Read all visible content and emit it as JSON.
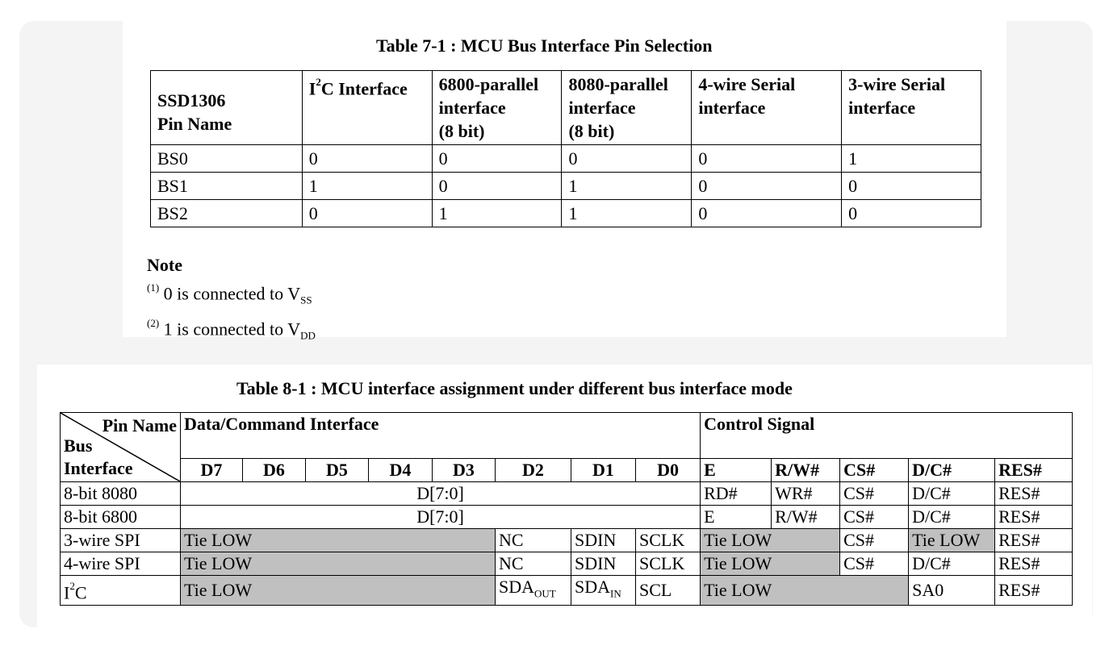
{
  "table1": {
    "title": "Table 7-1 : MCU Bus Interface Pin Selection",
    "header_pin_line1": "SSD1306",
    "header_pin_line2": "Pin Name",
    "col_i2c_base": "C Interface",
    "col_i2c_prefix": "I",
    "col_i2c_sup": "2",
    "col_6800_l1": "6800-parallel",
    "col_6800_l2": "interface",
    "col_6800_l3": "(8 bit)",
    "col_8080_l1": "8080-parallel",
    "col_8080_l2": "interface",
    "col_8080_l3": "(8 bit)",
    "col_4wire_l1": "4-wire Serial",
    "col_4wire_l2": "interface",
    "col_3wire_l1": "3-wire Serial",
    "col_3wire_l2": "interface",
    "rows": [
      {
        "pin": "BS0",
        "i2c": "0",
        "p6800": "0",
        "p8080": "0",
        "w4": "0",
        "w3": "1"
      },
      {
        "pin": "BS1",
        "i2c": "1",
        "p6800": "0",
        "p8080": "1",
        "w4": "0",
        "w3": "0"
      },
      {
        "pin": "BS2",
        "i2c": "0",
        "p6800": "1",
        "p8080": "1",
        "w4": "0",
        "w3": "0"
      }
    ]
  },
  "note": {
    "title": "Note",
    "n1_mark": "(1)",
    "n1_text": " 0 is connected to V",
    "n1_sub": "SS",
    "n2_mark": "(2)",
    "n2_text": " 1 is connected to V",
    "n2_sub": "DD"
  },
  "table2": {
    "title": "Table 8-1 : MCU interface assignment under different bus interface mode",
    "pin_name": "Pin Name",
    "bus": "Bus",
    "interface": "Interface",
    "data_cmd": "Data/Command Interface",
    "control": "Control Signal",
    "cols": [
      "D7",
      "D6",
      "D5",
      "D4",
      "D3",
      "D2",
      "D1",
      "D0",
      "E",
      "R/W#",
      "CS#",
      "D/C#",
      "RES#"
    ],
    "r8080": {
      "name": "8-bit 8080",
      "data": "D[7:0]",
      "e": "RD#",
      "rw": "WR#",
      "cs": "CS#",
      "dc": "D/C#",
      "res": "RES#"
    },
    "r6800": {
      "name": "8-bit 6800",
      "data": "D[7:0]",
      "e": "E",
      "rw": "R/W#",
      "cs": "CS#",
      "dc": "D/C#",
      "res": "RES#"
    },
    "r3spi": {
      "name": "3-wire SPI",
      "tie": "Tie LOW",
      "d2": "NC",
      "d1": "SDIN",
      "d0": "SCLK",
      "ctrl_tie": "Tie LOW",
      "cs": "CS#",
      "dc": "Tie LOW",
      "res": "RES#"
    },
    "r4spi": {
      "name": "4-wire SPI",
      "tie": "Tie LOW",
      "d2": "NC",
      "d1": "SDIN",
      "d0": "SCLK",
      "ctrl_tie": "Tie LOW",
      "cs": "CS#",
      "dc": "D/C#",
      "res": "RES#"
    },
    "ri2c": {
      "name_prefix": "I",
      "name_sup": "2",
      "name_base": "C",
      "tie": "Tie LOW",
      "d2": "SDA",
      "d2_sub": "OUT",
      "d1": "SDA",
      "d1_sub": "IN",
      "d0": "SCL",
      "ctrl_tie": "Tie LOW",
      "dc": "SA0",
      "res": "RES#"
    }
  }
}
